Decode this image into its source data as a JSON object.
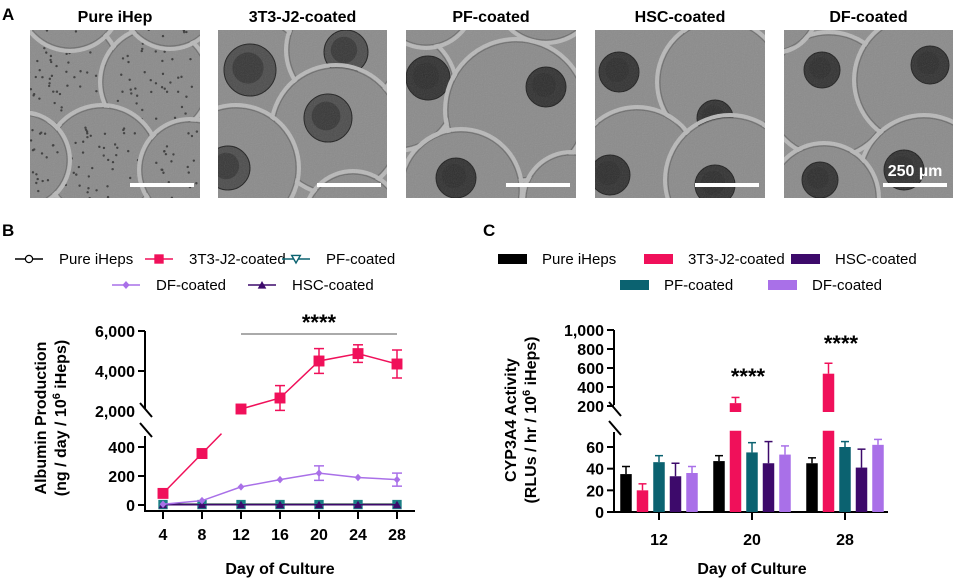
{
  "panel_a": {
    "letter": "A",
    "images": [
      {
        "title": "Pure iHep",
        "kind": "dispersed"
      },
      {
        "title": "3T3-J2-coated",
        "kind": "loose"
      },
      {
        "title": "PF-coated",
        "kind": "spheroid"
      },
      {
        "title": "HSC-coated",
        "kind": "spheroid"
      },
      {
        "title": "DF-coated",
        "kind": "spheroid"
      }
    ],
    "scale_bar_label": "250 µm"
  },
  "colors": {
    "pure": "#000000",
    "j2": "#f0105a",
    "pf": "#0b6270",
    "hsc": "#3d0a6b",
    "df": "#a970e8"
  },
  "chart_data": [
    {
      "panel": "B",
      "type": "line",
      "xlabel": "Day of Culture",
      "ylabel_line1": "Albumin Production",
      "ylabel_line2_pre": "(ng / day / 10",
      "ylabel_sup": "6",
      "ylabel_line2_post": " iHeps)",
      "x": [
        4,
        8,
        12,
        16,
        20,
        24,
        28
      ],
      "x_tick_labels": [
        "4",
        "8",
        "12",
        "16",
        "20",
        "24",
        "28"
      ],
      "y_axis_broken": true,
      "y_lower_range": [
        0,
        500
      ],
      "y_upper_range": [
        2000,
        6000
      ],
      "y_lower_ticks": [
        {
          "v": 0,
          "label": "0"
        },
        {
          "v": 200,
          "label": "200"
        },
        {
          "v": 400,
          "label": "400"
        }
      ],
      "y_upper_ticks": [
        {
          "v": 2000,
          "label": "2,000"
        },
        {
          "v": 4000,
          "label": "4,000"
        },
        {
          "v": 6000,
          "label": "6,000"
        }
      ],
      "legend": [
        {
          "name": "Pure iHeps",
          "key": "pure",
          "marker": "circle-open"
        },
        {
          "name": "3T3-J2-coated",
          "key": "j2",
          "marker": "square"
        },
        {
          "name": "PF-coated",
          "key": "pf",
          "marker": "triangle-down"
        },
        {
          "name": "DF-coated",
          "key": "df",
          "marker": "diamond"
        },
        {
          "name": "HSC-coated",
          "key": "hsc",
          "marker": "triangle-up"
        }
      ],
      "series": [
        {
          "name": "Pure iHeps",
          "key": "pure",
          "values": [
            5,
            5,
            5,
            5,
            5,
            5,
            5
          ],
          "err": [
            0,
            0,
            0,
            0,
            0,
            0,
            0
          ]
        },
        {
          "name": "3T3-J2-coated",
          "key": "j2",
          "values": [
            80,
            355,
            2100,
            2650,
            4500,
            4870,
            4350
          ],
          "err": [
            0,
            30,
            0,
            620,
            620,
            440,
            700
          ]
        },
        {
          "name": "PF-coated",
          "key": "pf",
          "values": [
            3,
            3,
            3,
            3,
            3,
            3,
            3
          ],
          "err": [
            0,
            0,
            0,
            0,
            0,
            0,
            0
          ]
        },
        {
          "name": "DF-coated",
          "key": "df",
          "values": [
            5,
            30,
            125,
            175,
            220,
            190,
            175
          ],
          "err": [
            0,
            0,
            0,
            0,
            50,
            0,
            45
          ]
        },
        {
          "name": "HSC-coated",
          "key": "hsc",
          "values": [
            2,
            2,
            2,
            2,
            2,
            2,
            2
          ],
          "err": [
            0,
            0,
            0,
            0,
            0,
            0,
            0
          ]
        }
      ],
      "significance": {
        "label": "****",
        "from_x": 12,
        "to_x": 28
      }
    },
    {
      "panel": "C",
      "type": "bar",
      "xlabel": "Day of Culture",
      "ylabel_line1": "CYP3A4 Activity",
      "ylabel_line2_pre": "(RLUs / hr / 10",
      "ylabel_sup": "6",
      "ylabel_line2_post": " iHeps)",
      "categories": [
        "12",
        "20",
        "28"
      ],
      "y_axis_broken": true,
      "y_lower_range": [
        0,
        75
      ],
      "y_upper_range": [
        200,
        1000
      ],
      "y_lower_ticks": [
        {
          "v": 0,
          "label": "0"
        },
        {
          "v": 20,
          "label": "20"
        },
        {
          "v": 40,
          "label": "40"
        },
        {
          "v": 60,
          "label": "60"
        }
      ],
      "y_upper_ticks": [
        {
          "v": 200,
          "label": "200"
        },
        {
          "v": 400,
          "label": "400"
        },
        {
          "v": 600,
          "label": "600"
        },
        {
          "v": 800,
          "label": "800"
        },
        {
          "v": 1000,
          "label": "1,000"
        }
      ],
      "legend": [
        {
          "name": "Pure iHeps",
          "key": "pure"
        },
        {
          "name": "3T3-J2-coated",
          "key": "j2"
        },
        {
          "name": "HSC-coated",
          "key": "hsc"
        },
        {
          "name": "PF-coated",
          "key": "pf"
        },
        {
          "name": "DF-coated",
          "key": "df"
        }
      ],
      "bar_order": [
        "pure",
        "j2",
        "pf",
        "hsc",
        "df"
      ],
      "series": [
        {
          "name": "Pure iHeps",
          "key": "pure",
          "values": [
            35,
            47,
            45
          ],
          "err": [
            7,
            5,
            5
          ]
        },
        {
          "name": "3T3-J2-coated",
          "key": "j2",
          "values": [
            20,
            230,
            540
          ],
          "err": [
            6,
            60,
            110
          ]
        },
        {
          "name": "PF-coated",
          "key": "pf",
          "values": [
            46,
            55,
            60
          ],
          "err": [
            6,
            9,
            5
          ]
        },
        {
          "name": "HSC-coated",
          "key": "hsc",
          "values": [
            33,
            45,
            41
          ],
          "err": [
            12,
            20,
            17
          ]
        },
        {
          "name": "DF-coated",
          "key": "df",
          "values": [
            36,
            53,
            62
          ],
          "err": [
            6,
            8,
            5
          ]
        }
      ],
      "significance": [
        {
          "category": "20",
          "label": "****"
        },
        {
          "category": "28",
          "label": "****"
        }
      ]
    }
  ]
}
